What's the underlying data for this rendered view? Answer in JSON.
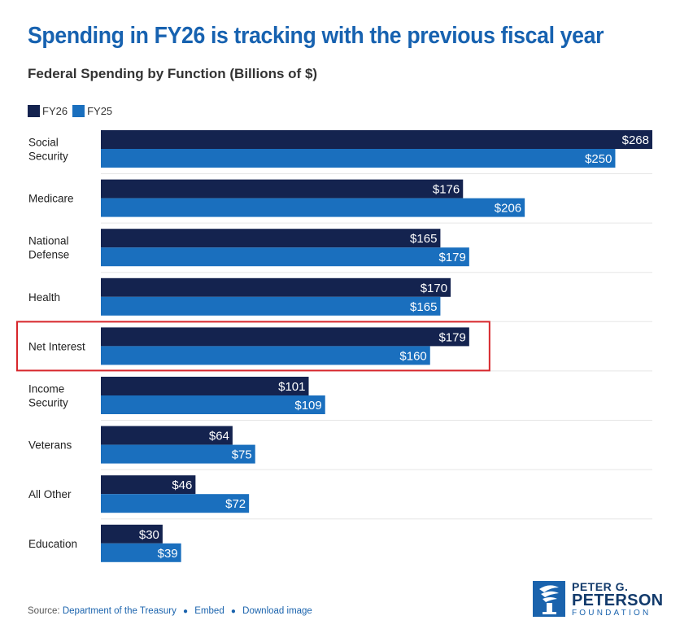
{
  "title": "Spending in FY26 is tracking with the previous fiscal year",
  "subtitle": "Federal Spending by Function (Billions of $)",
  "colors": {
    "fy26": "#14234f",
    "fy25": "#1a6fbe",
    "highlight": "#d7262b",
    "title": "#1762b0"
  },
  "chart_data": {
    "type": "bar",
    "orientation": "horizontal",
    "title": "Spending in FY26 is tracking with the previous fiscal year",
    "subtitle": "Federal Spending by Function (Billions of $)",
    "categories": [
      "Social Security",
      "Medicare",
      "National Defense",
      "Health",
      "Net Interest",
      "Income Security",
      "Veterans",
      "All Other",
      "Education"
    ],
    "category_lines": [
      [
        "Social",
        "Security"
      ],
      [
        "Medicare"
      ],
      [
        "National",
        "Defense"
      ],
      [
        "Health"
      ],
      [
        "Net Interest"
      ],
      [
        "Income",
        "Security"
      ],
      [
        "Veterans"
      ],
      [
        "All Other"
      ],
      [
        "Education"
      ]
    ],
    "series": [
      {
        "name": "FY26",
        "values": [
          268,
          176,
          165,
          170,
          179,
          101,
          64,
          46,
          30
        ]
      },
      {
        "name": "FY25",
        "values": [
          250,
          206,
          179,
          165,
          160,
          109,
          75,
          72,
          39
        ]
      }
    ],
    "value_prefix": "$",
    "xlim": [
      0,
      268
    ],
    "legend_position": "top-left",
    "highlighted_category": "Net Interest"
  },
  "footer": {
    "source_label": "Source:",
    "source_link": "Department of the Treasury",
    "embed": "Embed",
    "download": "Download image"
  },
  "logo": {
    "line1": "PETER G.",
    "line2": "PETERSON",
    "line3": "FOUNDATION"
  }
}
